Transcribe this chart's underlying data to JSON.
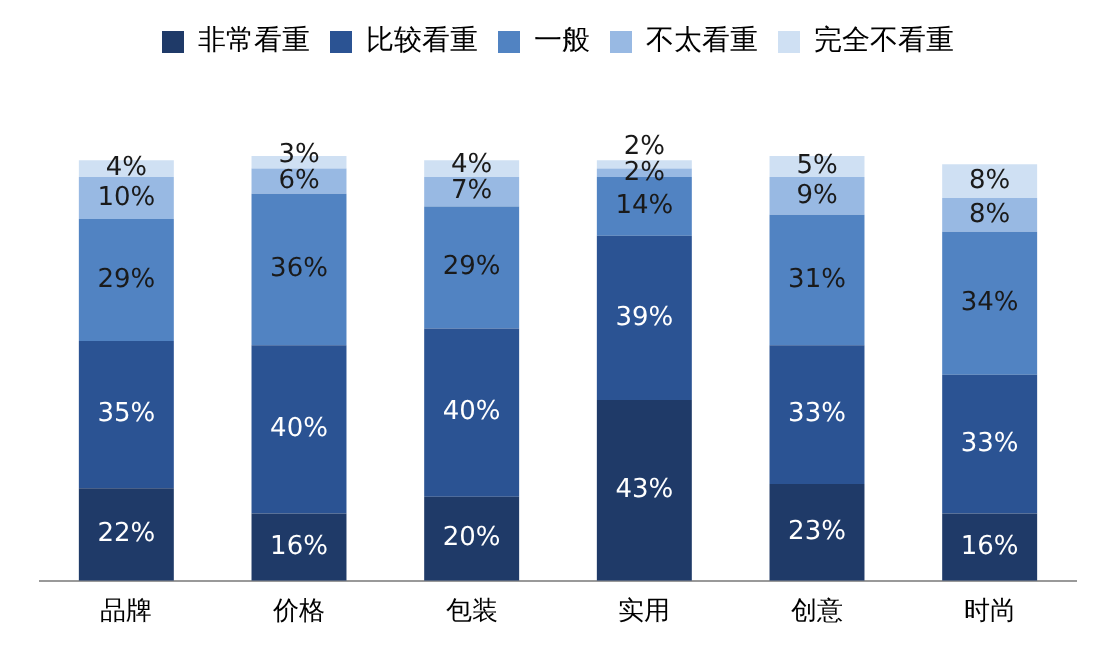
{
  "chart_data": {
    "type": "bar",
    "stacked": true,
    "legend": "top",
    "grid": false,
    "categories": [
      "品牌",
      "价格",
      "包装",
      "实用",
      "创意",
      "时尚"
    ],
    "series": [
      {
        "name": "非常看重",
        "color": "#1f3a68",
        "values": [
          22,
          16,
          20,
          43,
          23,
          16
        ],
        "value_labels": [
          "22%",
          "16%",
          "20%",
          "43%",
          "23%",
          "16%"
        ]
      },
      {
        "name": "比较看重",
        "color": "#2b5393",
        "values": [
          35,
          40,
          40,
          39,
          33,
          33
        ],
        "value_labels": [
          "35%",
          "40%",
          "40%",
          "39%",
          "33%",
          "33%"
        ]
      },
      {
        "name": "一般",
        "color": "#5183c2",
        "values": [
          29,
          36,
          29,
          14,
          31,
          34
        ],
        "value_labels": [
          "29%",
          "36%",
          "29%",
          "14%",
          "31%",
          "34%"
        ]
      },
      {
        "name": "不太看重",
        "color": "#98b9e3",
        "values": [
          10,
          6,
          7,
          2,
          9,
          8
        ],
        "value_labels": [
          "10%",
          "6%",
          "7%",
          "2%",
          "9%",
          "8%"
        ]
      },
      {
        "name": "完全不看重",
        "color": "#cfe0f3",
        "values": [
          4,
          3,
          4,
          2,
          5,
          8
        ],
        "value_labels": [
          "4%",
          "3%",
          "4%",
          "2%",
          "5%",
          "8%"
        ]
      }
    ]
  }
}
